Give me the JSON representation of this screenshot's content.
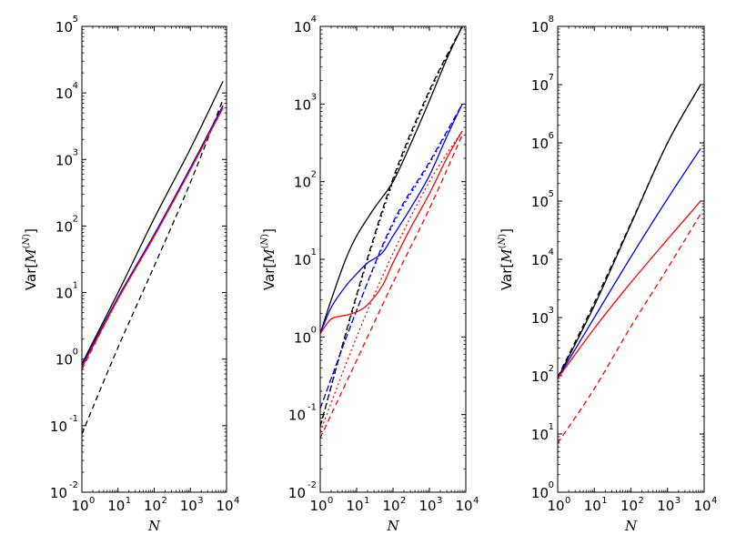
{
  "chart_data": [
    {
      "type": "line",
      "panel": "left",
      "xlabel": "N",
      "ylabel": "Var[M^(N)]",
      "ylabel_parts": {
        "prefix": "Var",
        "symbol": "M",
        "superscript": "N"
      },
      "xscale": "log",
      "yscale": "log",
      "xlim": [
        1,
        10000
      ],
      "ylim": [
        0.01,
        100000
      ],
      "xticks": [
        {
          "base": "10",
          "exp": "0"
        },
        {
          "base": "10",
          "exp": "1"
        },
        {
          "base": "10",
          "exp": "2"
        },
        {
          "base": "10",
          "exp": "3"
        },
        {
          "base": "10",
          "exp": "4"
        }
      ],
      "yticks": [
        {
          "base": "10",
          "exp": "-2"
        },
        {
          "base": "10",
          "exp": "-1"
        },
        {
          "base": "10",
          "exp": "0"
        },
        {
          "base": "10",
          "exp": "1"
        },
        {
          "base": "10",
          "exp": "2"
        },
        {
          "base": "10",
          "exp": "3"
        },
        {
          "base": "10",
          "exp": "4"
        },
        {
          "base": "10",
          "exp": "5"
        }
      ],
      "series": [
        {
          "name": "black solid",
          "color": "#000000",
          "dash": "solid",
          "x": [
            1,
            10,
            100,
            1000,
            8000
          ],
          "y": [
            0.85,
            10,
            130,
            1450,
            15000
          ]
        },
        {
          "name": "black dashed",
          "color": "#000000",
          "dash": "dashed",
          "x": [
            1,
            10,
            100,
            1000,
            8000
          ],
          "y": [
            0.075,
            1.5,
            25,
            450,
            8000
          ]
        },
        {
          "name": "blue solid",
          "color": "#0000ff",
          "dash": "solid",
          "x": [
            1,
            10,
            100,
            1000,
            8000
          ],
          "y": [
            0.8,
            8.5,
            75,
            750,
            6500
          ]
        },
        {
          "name": "red solid",
          "color": "#ff0000",
          "dash": "solid",
          "x": [
            1,
            10,
            100,
            1000,
            8000
          ],
          "y": [
            0.75,
            8,
            70,
            700,
            6000
          ]
        },
        {
          "name": "red dashed",
          "color": "#ff0000",
          "dash": "dashed",
          "x": [
            1,
            10,
            100,
            1000,
            8000
          ],
          "y": [
            0.7,
            8,
            70,
            700,
            6000
          ]
        }
      ]
    },
    {
      "type": "line",
      "panel": "middle",
      "xlabel": "N",
      "ylabel": "Var[M^(N)]",
      "ylabel_parts": {
        "prefix": "Var",
        "symbol": "M",
        "superscript": "N"
      },
      "xscale": "log",
      "yscale": "log",
      "xlim": [
        1,
        10000
      ],
      "ylim": [
        0.01,
        10000
      ],
      "xticks": [
        {
          "base": "10",
          "exp": "0"
        },
        {
          "base": "10",
          "exp": "1"
        },
        {
          "base": "10",
          "exp": "2"
        },
        {
          "base": "10",
          "exp": "3"
        },
        {
          "base": "10",
          "exp": "4"
        }
      ],
      "yticks": [
        {
          "base": "10",
          "exp": "-2"
        },
        {
          "base": "10",
          "exp": "-1"
        },
        {
          "base": "10",
          "exp": "0"
        },
        {
          "base": "10",
          "exp": "1"
        },
        {
          "base": "10",
          "exp": "2"
        },
        {
          "base": "10",
          "exp": "3"
        },
        {
          "base": "10",
          "exp": "4"
        }
      ],
      "series": [
        {
          "name": "black solid",
          "color": "#000000",
          "dash": "solid",
          "x": [
            1,
            2,
            5,
            10,
            30,
            100,
            300,
            1000,
            3000,
            8000
          ],
          "y": [
            1.1,
            3,
            10,
            20,
            45,
            100,
            300,
            1100,
            3800,
            10000
          ]
        },
        {
          "name": "black dashed",
          "color": "#000000",
          "dash": "dashed",
          "x": [
            1,
            10,
            100,
            1000,
            8000
          ],
          "y": [
            0.07,
            3.5,
            110,
            1500,
            10000
          ]
        },
        {
          "name": "black dotted",
          "color": "#000000",
          "dash": "dotted",
          "x": [
            1,
            10,
            100,
            1000,
            8000
          ],
          "y": [
            0.07,
            3.3,
            100,
            1400,
            10000
          ]
        },
        {
          "name": "blue solid",
          "color": "#0000ff",
          "dash": "solid",
          "x": [
            1,
            2,
            5,
            10,
            20,
            50,
            100,
            300,
            1000,
            3000,
            8000
          ],
          "y": [
            1.1,
            2.4,
            4.5,
            6.5,
            9,
            12,
            20,
            45,
            120,
            380,
            1000
          ]
        },
        {
          "name": "blue dashed",
          "color": "#0000ff",
          "dash": "dashed",
          "x": [
            1,
            10,
            100,
            1000,
            8000
          ],
          "y": [
            0.12,
            2.2,
            30,
            180,
            1000
          ]
        },
        {
          "name": "blue dotted",
          "color": "#0000ff",
          "dash": "dotted",
          "x": [
            1,
            10,
            100,
            1000,
            8000
          ],
          "y": [
            0.12,
            2.2,
            28,
            170,
            1000
          ]
        },
        {
          "name": "red solid",
          "color": "#ff0000",
          "dash": "solid",
          "x": [
            1,
            2,
            5,
            10,
            20,
            50,
            100,
            300,
            1000,
            3000,
            8000
          ],
          "y": [
            1.1,
            1.7,
            1.9,
            2.1,
            2.6,
            4.5,
            9,
            25,
            70,
            200,
            450
          ]
        },
        {
          "name": "red dashed",
          "color": "#ff0000",
          "dash": "dashed",
          "x": [
            1,
            10,
            100,
            1000,
            8000
          ],
          "y": [
            0.05,
            0.5,
            5,
            45,
            400
          ]
        },
        {
          "name": "red dotted",
          "color": "#ff0000",
          "dash": "dotted",
          "x": [
            1,
            10,
            100,
            1000,
            8000
          ],
          "y": [
            0.06,
            1.0,
            12,
            100,
            450
          ]
        }
      ]
    },
    {
      "type": "line",
      "panel": "right",
      "xlabel": "N",
      "ylabel": "Var[M^(N)]",
      "ylabel_parts": {
        "prefix": "Var",
        "symbol": "M",
        "superscript": "N"
      },
      "xscale": "log",
      "yscale": "log",
      "xlim": [
        1,
        10000
      ],
      "ylim": [
        1,
        100000000
      ],
      "xticks": [
        {
          "base": "10",
          "exp": "0"
        },
        {
          "base": "10",
          "exp": "1"
        },
        {
          "base": "10",
          "exp": "2"
        },
        {
          "base": "10",
          "exp": "3"
        },
        {
          "base": "10",
          "exp": "4"
        }
      ],
      "yticks": [
        {
          "base": "10",
          "exp": "0"
        },
        {
          "base": "10",
          "exp": "1"
        },
        {
          "base": "10",
          "exp": "2"
        },
        {
          "base": "10",
          "exp": "3"
        },
        {
          "base": "10",
          "exp": "4"
        },
        {
          "base": "10",
          "exp": "5"
        },
        {
          "base": "10",
          "exp": "6"
        },
        {
          "base": "10",
          "exp": "7"
        },
        {
          "base": "10",
          "exp": "8"
        }
      ],
      "series": [
        {
          "name": "black solid",
          "color": "#000000",
          "dash": "solid",
          "x": [
            1,
            10,
            100,
            1000,
            8000
          ],
          "y": [
            90,
            1600,
            40000,
            1000000,
            10000000
          ]
        },
        {
          "name": "black dashed",
          "color": "#000000",
          "dash": "dashed",
          "x": [
            1,
            10,
            100,
            1000,
            8000
          ],
          "y": [
            95,
            1800,
            42000,
            1000000,
            10000000
          ]
        },
        {
          "name": "blue solid",
          "color": "#0000ff",
          "dash": "solid",
          "x": [
            1,
            10,
            100,
            1000,
            8000
          ],
          "y": [
            90,
            1000,
            11000,
            110000,
            800000
          ]
        },
        {
          "name": "red solid",
          "color": "#ff0000",
          "dash": "solid",
          "x": [
            1,
            10,
            100,
            1000,
            8000
          ],
          "y": [
            90,
            650,
            4000,
            22000,
            100000
          ]
        },
        {
          "name": "red dashed",
          "color": "#ff0000",
          "dash": "dashed",
          "x": [
            1,
            10,
            100,
            1000,
            8000
          ],
          "y": [
            7,
            60,
            700,
            7000,
            60000
          ]
        }
      ]
    }
  ]
}
